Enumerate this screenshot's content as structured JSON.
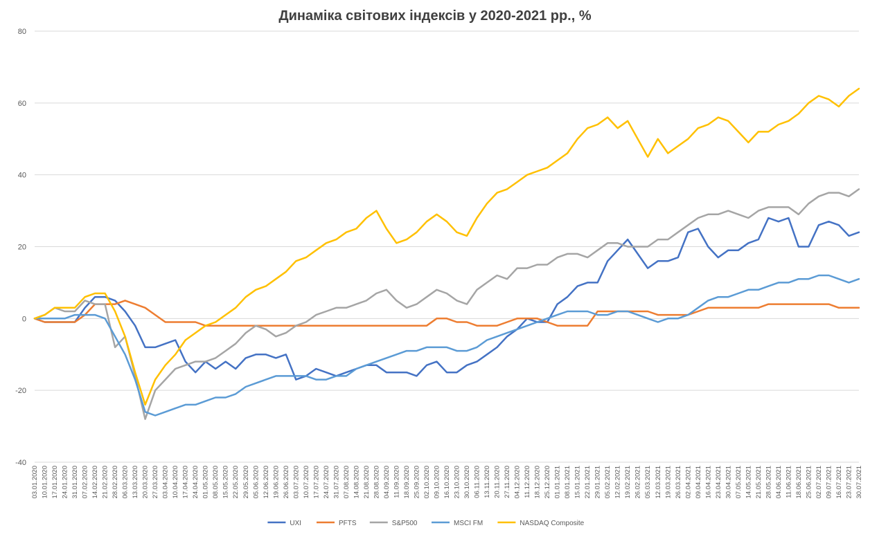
{
  "chart_data": {
    "type": "line",
    "title": "Динаміка світових індексів у 2020-2021 рр., %",
    "ylim": [
      -40,
      80
    ],
    "yticks": [
      "80",
      "60",
      "40",
      "20",
      "0",
      "-20",
      "-40"
    ],
    "grid": "horizontal",
    "legend_position": "bottom",
    "x_tick_labels": [
      "03.01.2020",
      "10.01.2020",
      "17.01.2020",
      "24.01.2020",
      "31.01.2020",
      "07.02.2020",
      "14.02.2020",
      "21.02.2020",
      "28.02.2020",
      "06.03.2020",
      "13.03.2020",
      "20.03.2020",
      "27.03.2020",
      "03.04.2020",
      "10.04.2020",
      "17.04.2020",
      "24.04.2020",
      "01.05.2020",
      "08.05.2020",
      "15.05.2020",
      "22.05.2020",
      "29.05.2020",
      "05.06.2020",
      "12.06.2020",
      "19.06.2020",
      "26.06.2020",
      "03.07.2020",
      "10.07.2020",
      "17.07.2020",
      "24.07.2020",
      "31.07.2020",
      "07.08.2020",
      "14.08.2020",
      "21.08.2020",
      "28.08.2020",
      "04.09.2020",
      "11.09.2020",
      "18.09.2020",
      "25.09.2020",
      "02.10.2020",
      "09.10.2020",
      "16.10.2020",
      "23.10.2020",
      "30.10.2020",
      "06.11.2020",
      "13.11.2020",
      "20.11.2020",
      "27.11.2020",
      "04.12.2020",
      "11.12.2020",
      "18.12.2020",
      "25.12.2020",
      "01.01.2021",
      "08.01.2021",
      "15.01.2021",
      "22.01.2021",
      "29.01.2021",
      "05.02.2021",
      "12.02.2021",
      "19.02.2021",
      "26.02.2021",
      "05.03.2021",
      "12.03.2021",
      "19.03.2021",
      "26.03.2021",
      "02.04.2021",
      "09.04.2021",
      "16.04.2021",
      "23.04.2021",
      "30.04.2021",
      "07.05.2021",
      "14.05.2021",
      "21.05.2021",
      "28.05.2021",
      "04.06.2021",
      "11.06.2021",
      "18.06.2021",
      "25.06.2021",
      "02.07.2021",
      "09.07.2021",
      "16.07.2021",
      "23.07.2021",
      "30.07.2021"
    ],
    "series": [
      {
        "name": "UXI",
        "color": "#4472C4",
        "values": [
          0,
          -1,
          -1,
          -1,
          -1,
          3,
          6,
          6,
          5,
          2,
          -2,
          -8,
          -8,
          -7,
          -6,
          -12,
          -15,
          -12,
          -14,
          -12,
          -14,
          -11,
          -10,
          -10,
          -11,
          -10,
          -17,
          -16,
          -14,
          -15,
          -16,
          -15,
          -14,
          -13,
          -13,
          -15,
          -15,
          -15,
          -16,
          -13,
          -12,
          -15,
          -15,
          -13,
          -12,
          -10,
          -8,
          -5,
          -3,
          0,
          -1,
          -1,
          4,
          6,
          9,
          10,
          10,
          16,
          19,
          22,
          18,
          14,
          16,
          16,
          17,
          24,
          25,
          20,
          17,
          19,
          19,
          21,
          22,
          28,
          27,
          28,
          20,
          20,
          26,
          27,
          26,
          23,
          24
        ]
      },
      {
        "name": "PFTS",
        "color": "#ED7D31",
        "values": [
          0,
          -1,
          -1,
          -1,
          -1,
          1,
          4,
          4,
          4,
          5,
          4,
          3,
          1,
          -1,
          -1,
          -1,
          -1,
          -2,
          -2,
          -2,
          -2,
          -2,
          -2,
          -2,
          -2,
          -2,
          -2,
          -2,
          -2,
          -2,
          -2,
          -2,
          -2,
          -2,
          -2,
          -2,
          -2,
          -2,
          -2,
          -2,
          0,
          0,
          -1,
          -1,
          -2,
          -2,
          -2,
          -1,
          0,
          0,
          0,
          -1,
          -2,
          -2,
          -2,
          -2,
          2,
          2,
          2,
          2,
          2,
          2,
          1,
          1,
          1,
          1,
          2,
          3,
          3,
          3,
          3,
          3,
          3,
          4,
          4,
          4,
          4,
          4,
          4,
          4,
          3,
          3,
          3
        ]
      },
      {
        "name": "S&P500",
        "color": "#A5A5A5",
        "values": [
          0,
          1,
          3,
          2,
          2,
          5,
          4,
          4,
          -8,
          -5,
          -16,
          -28,
          -20,
          -17,
          -14,
          -13,
          -12,
          -12,
          -11,
          -9,
          -7,
          -4,
          -2,
          -3,
          -5,
          -4,
          -2,
          -1,
          1,
          2,
          3,
          3,
          4,
          5,
          7,
          8,
          5,
          3,
          4,
          6,
          8,
          7,
          5,
          4,
          8,
          10,
          12,
          11,
          14,
          14,
          15,
          15,
          17,
          18,
          18,
          17,
          19,
          21,
          21,
          20,
          20,
          20,
          22,
          22,
          24,
          26,
          28,
          29,
          29,
          30,
          29,
          28,
          30,
          31,
          31,
          31,
          29,
          32,
          34,
          35,
          35,
          34,
          36
        ]
      },
      {
        "name": "MSCI FM",
        "color": "#5B9BD5",
        "values": [
          0,
          0,
          0,
          0,
          1,
          1,
          1,
          0,
          -5,
          -10,
          -17,
          -26,
          -27,
          -26,
          -25,
          -24,
          -24,
          -23,
          -22,
          -22,
          -21,
          -19,
          -18,
          -17,
          -16,
          -16,
          -16,
          -16,
          -17,
          -17,
          -16,
          -16,
          -14,
          -13,
          -12,
          -11,
          -10,
          -9,
          -9,
          -8,
          -8,
          -8,
          -9,
          -9,
          -8,
          -6,
          -5,
          -4,
          -3,
          -2,
          -1,
          0,
          1,
          2,
          2,
          2,
          1,
          1,
          2,
          2,
          1,
          0,
          -1,
          0,
          0,
          1,
          3,
          5,
          6,
          6,
          7,
          8,
          8,
          9,
          10,
          10,
          11,
          11,
          12,
          12,
          11,
          10,
          11
        ]
      },
      {
        "name": "NASDAQ Composite",
        "color": "#FFC000",
        "values": [
          0,
          1,
          3,
          3,
          3,
          6,
          7,
          7,
          2,
          -5,
          -15,
          -24,
          -17,
          -13,
          -10,
          -6,
          -4,
          -2,
          -1,
          1,
          3,
          6,
          8,
          9,
          11,
          13,
          16,
          17,
          19,
          21,
          22,
          24,
          25,
          28,
          30,
          25,
          21,
          22,
          24,
          27,
          29,
          27,
          24,
          23,
          28,
          32,
          35,
          36,
          38,
          40,
          41,
          42,
          44,
          46,
          50,
          53,
          54,
          56,
          53,
          55,
          50,
          45,
          50,
          46,
          48,
          50,
          53,
          54,
          56,
          55,
          52,
          49,
          52,
          52,
          54,
          55,
          57,
          60,
          62,
          61,
          59,
          62,
          64
        ]
      }
    ]
  }
}
